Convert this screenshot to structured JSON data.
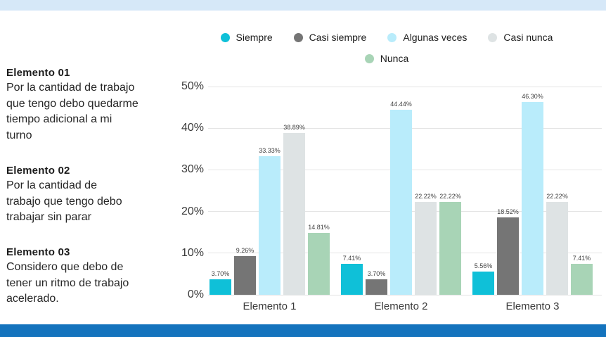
{
  "page": {
    "background": "#ffffff",
    "top_strip_color": "#d6e8f8",
    "bottom_strip_color": "#1473bd"
  },
  "left_panel": {
    "items": [
      {
        "title": "Elemento 01",
        "body": "Por la cantidad de trabajo\nque tengo debo quedarme\ntiempo adicional a mi\nturno"
      },
      {
        "title": "Elemento 02",
        "body": "Por la cantidad de\ntrabajo que tengo debo\ntrabajar sin parar"
      },
      {
        "title": "Elemento 03",
        "body": "Considero que debo de\ntener un ritmo de trabajo\nacelerado."
      }
    ]
  },
  "chart_data": {
    "type": "bar",
    "title": "",
    "xlabel": "",
    "ylabel": "",
    "categories": [
      "Elemento 1",
      "Elemento 2",
      "Elemento 3"
    ],
    "series": [
      {
        "name": "Siempre",
        "color": "#0fc0d8",
        "values": [
          3.7,
          7.41,
          5.56
        ]
      },
      {
        "name": "Casi siempre",
        "color": "#757575",
        "values": [
          9.26,
          3.7,
          18.52
        ]
      },
      {
        "name": "Algunas veces",
        "color": "#b9ecfb",
        "values": [
          33.33,
          44.44,
          46.3
        ]
      },
      {
        "name": "Casi nunca",
        "color": "#dee3e4",
        "values": [
          38.89,
          22.22,
          22.22
        ]
      },
      {
        "name": "Nunca",
        "color": "#a8d4b6",
        "values": [
          14.81,
          22.22,
          7.41
        ]
      }
    ],
    "value_suffix": "%",
    "ylim": [
      0,
      50
    ],
    "yticks": [
      "0%",
      "10%",
      "20%",
      "30%",
      "40%",
      "50%"
    ],
    "grid": true,
    "legend_position": "top"
  }
}
